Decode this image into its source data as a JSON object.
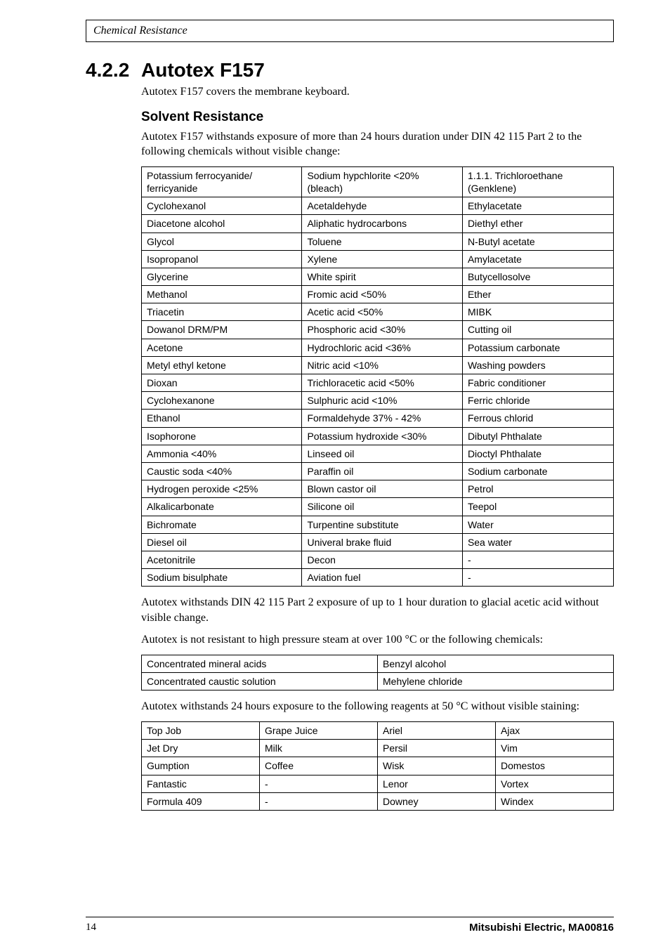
{
  "header": {
    "title": "Chemical Resistance"
  },
  "section": {
    "number": "4.2.2",
    "title": "Autotex F157",
    "intro": "Autotex F157 covers the membrane keyboard."
  },
  "subheading": "Solvent Resistance",
  "para1": "Autotex F157 withstands exposure of more than 24 hours duration under DIN 42 115 Part 2 to the following chemicals without visible change:",
  "table1": {
    "rows": [
      [
        "Potassium ferrocyanide/ ferricyanide",
        "Sodium hypchlorite <20% (bleach)",
        "1.1.1. Trichloroethane (Genklene)"
      ],
      [
        "Cyclohexanol",
        "Acetaldehyde",
        "Ethylacetate"
      ],
      [
        "Diacetone alcohol",
        "Aliphatic hydrocarbons",
        "Diethyl ether"
      ],
      [
        "Glycol",
        "Toluene",
        "N-Butyl acetate"
      ],
      [
        "Isopropanol",
        "Xylene",
        "Amylacetate"
      ],
      [
        "Glycerine",
        "White spirit",
        "Butycellosolve"
      ],
      [
        "Methanol",
        "Fromic acid <50%",
        "Ether"
      ],
      [
        "Triacetin",
        "Acetic acid <50%",
        "MIBK"
      ],
      [
        "Dowanol DRM/PM",
        "Phosphoric acid <30%",
        "Cutting oil"
      ],
      [
        "Acetone",
        "Hydrochloric acid <36%",
        "Potassium carbonate"
      ],
      [
        "Metyl ethyl ketone",
        "Nitric acid <10%",
        "Washing powders"
      ],
      [
        "Dioxan",
        "Trichloracetic acid <50%",
        "Fabric conditioner"
      ],
      [
        "Cyclohexanone",
        "Sulphuric acid <10%",
        "Ferric chloride"
      ],
      [
        "Ethanol",
        "Formaldehyde 37% - 42%",
        "Ferrous chlorid"
      ],
      [
        "Isophorone",
        "Potassium hydroxide <30%",
        "Dibutyl Phthalate"
      ],
      [
        "Ammonia <40%",
        "Linseed oil",
        "Dioctyl Phthalate"
      ],
      [
        "Caustic soda <40%",
        "Paraffin oil",
        "Sodium carbonate"
      ],
      [
        "Hydrogen peroxide <25%",
        "Blown castor oil",
        "Petrol"
      ],
      [
        "Alkalicarbonate",
        "Silicone oil",
        "Teepol"
      ],
      [
        "Bichromate",
        "Turpentine substitute",
        "Water"
      ],
      [
        "Diesel oil",
        "Univeral brake fluid",
        "Sea water"
      ],
      [
        "Acetonitrile",
        "Decon",
        "-"
      ],
      [
        "Sodium bisulphate",
        "Aviation fuel",
        "-"
      ]
    ],
    "col_widths": [
      "34%",
      "34%",
      "32%"
    ]
  },
  "para2": "Autotex withstands DIN 42 115 Part 2 exposure of up to 1 hour duration to glacial acetic acid without visible change.",
  "para3": "Autotex is not resistant to high pressure steam at over 100 °C or the following chemicals:",
  "table2": {
    "rows": [
      [
        "Concentrated mineral acids",
        "Benzyl alcohol"
      ],
      [
        "Concentrated caustic solution",
        "Mehylene chloride"
      ]
    ],
    "col_widths": [
      "50%",
      "50%"
    ]
  },
  "para4": "Autotex withstands 24 hours exposure to the following reagents at 50 °C without visible staining:",
  "table3": {
    "rows": [
      [
        "Top Job",
        "Grape Juice",
        "Ariel",
        "Ajax"
      ],
      [
        "Jet Dry",
        "Milk",
        "Persil",
        "Vim"
      ],
      [
        "Gumption",
        "Coffee",
        "Wisk",
        "Domestos"
      ],
      [
        "Fantastic",
        "-",
        "Lenor",
        "Vortex"
      ],
      [
        "Formula 409",
        "-",
        "Downey",
        "Windex"
      ]
    ],
    "col_widths": [
      "25%",
      "25%",
      "25%",
      "25%"
    ]
  },
  "footer": {
    "page": "14",
    "right": "Mitsubishi Electric, MA00816"
  }
}
